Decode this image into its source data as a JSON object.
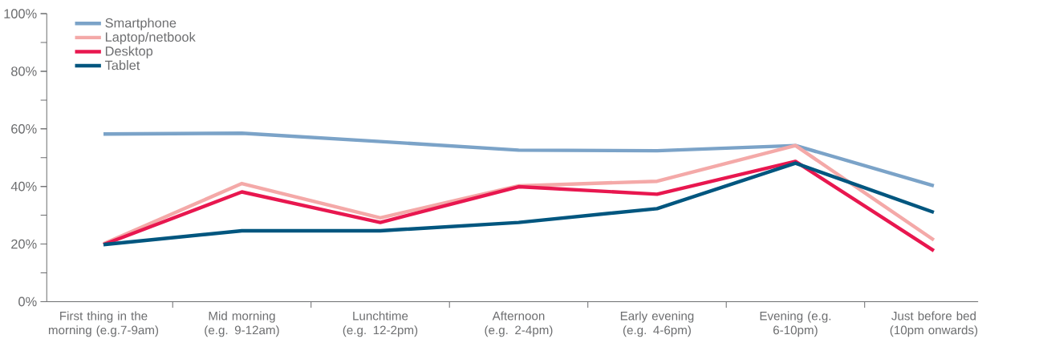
{
  "chart_data": {
    "type": "line",
    "categories": [
      "First thing in the morning (e.g.7-9am)",
      "Mid morning (e.g. 9-12am)",
      "Lunchtime (e.g. 12-2pm)",
      "Afternoon (e.g. 2-4pm)",
      "Early evening (e.g. 4-6pm)",
      "Evening (e.g. 6-10pm)",
      "Just before bed (10pm onwards)"
    ],
    "series": [
      {
        "name": "Smartphone",
        "color": "#7ba3c8",
        "values": [
          58.2,
          58.5,
          55.6,
          52.6,
          52.4,
          54.2,
          40.2
        ]
      },
      {
        "name": "Laptop/netbook",
        "color": "#f4a9a8",
        "values": [
          20.1,
          41,
          29.1,
          40.2,
          41.8,
          54.2,
          21.4
        ]
      },
      {
        "name": "Desktop",
        "color": "#e8174f",
        "values": [
          19.8,
          38.1,
          27.5,
          39.9,
          37.3,
          48.7,
          17.7
        ]
      },
      {
        "name": "Tablet",
        "color": "#00567f",
        "values": [
          19.8,
          24.6,
          24.6,
          27.5,
          32.3,
          48.1,
          31
        ]
      }
    ],
    "ylim": [
      0,
      100
    ],
    "yticks": [
      {
        "value": 0,
        "label": "0%"
      },
      {
        "value": 20,
        "label": "20%"
      },
      {
        "value": 40,
        "label": "40%"
      },
      {
        "value": 60,
        "label": "60%"
      },
      {
        "value": 80,
        "label": "80%"
      },
      {
        "value": 100,
        "label": "100%"
      }
    ],
    "legend": "top left",
    "grid": false,
    "marker": "none",
    "line_style": "solid"
  }
}
